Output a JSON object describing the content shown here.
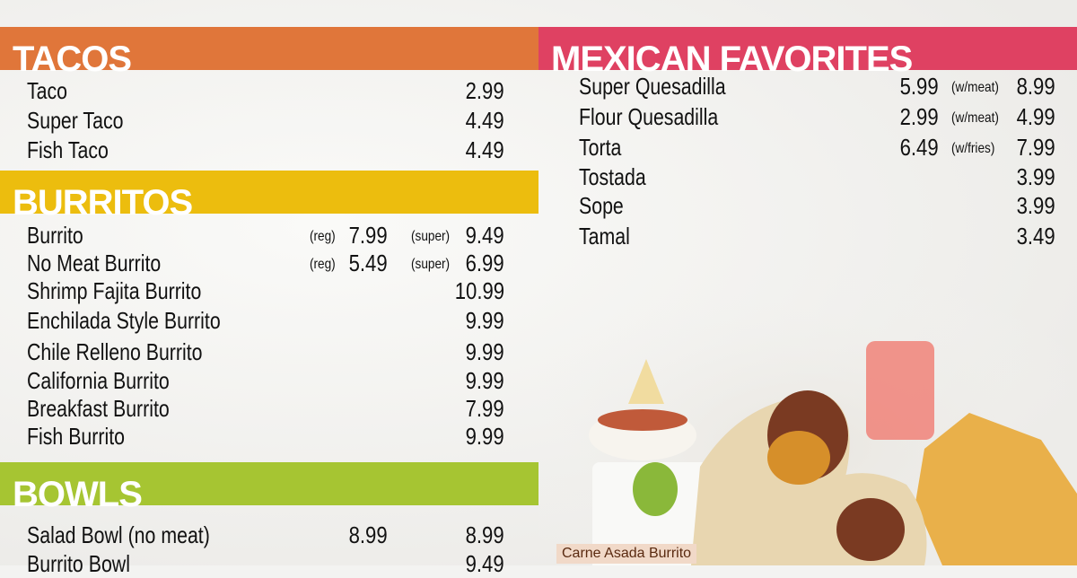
{
  "colors": {
    "tacos": "#e0763a",
    "burritos": "#ecbd0e",
    "bowls": "#a6c532",
    "favorites": "#df4162"
  },
  "tacos": {
    "title": "TACOS",
    "items": [
      {
        "name": "Taco",
        "price": "2.99"
      },
      {
        "name": "Super Taco",
        "price": "4.49"
      },
      {
        "name": "Fish Taco",
        "price": "4.49"
      }
    ]
  },
  "burritos": {
    "title": "BURRITOS",
    "items": [
      {
        "name": "Burrito",
        "reg_label": "(reg)",
        "reg": "7.99",
        "super_label": "(super)",
        "price": "9.49"
      },
      {
        "name": "No Meat Burrito",
        "reg_label": "(reg)",
        "reg": "5.49",
        "super_label": "(super)",
        "price": "6.99"
      },
      {
        "name": "Shrimp Fajita Burrito",
        "price": "10.99"
      },
      {
        "name": "Enchilada Style Burrito",
        "price": "9.99"
      },
      {
        "name": "Chile Relleno Burrito",
        "price": "9.99"
      },
      {
        "name": "California Burrito",
        "price": "9.99"
      },
      {
        "name": "Breakfast Burrito",
        "price": "7.99"
      },
      {
        "name": "Fish Burrito",
        "price": "9.99"
      }
    ]
  },
  "bowls": {
    "title": "BOWLS",
    "items": [
      {
        "name": "Salad Bowl (no meat)",
        "reg": "8.99",
        "price": "8.99"
      },
      {
        "name": "Burrito Bowl",
        "price": "9.49"
      }
    ]
  },
  "favorites": {
    "title": "MEXICAN FAVORITES",
    "items": [
      {
        "name": "Super Quesadilla",
        "reg": "5.99",
        "super_label": "(w/meat)",
        "price": "8.99"
      },
      {
        "name": "Flour Quesadilla",
        "reg": "2.99",
        "super_label": "(w/meat)",
        "price": "4.99"
      },
      {
        "name": "Torta",
        "reg": "6.49",
        "super_label": "(w/fries)",
        "price": "7.99"
      },
      {
        "name": "Tostada",
        "price": "3.99"
      },
      {
        "name": "Sope",
        "price": "3.99"
      },
      {
        "name": "Tamal",
        "price": "3.49"
      }
    ]
  },
  "photo": {
    "caption": "Carne Asada Burrito"
  }
}
